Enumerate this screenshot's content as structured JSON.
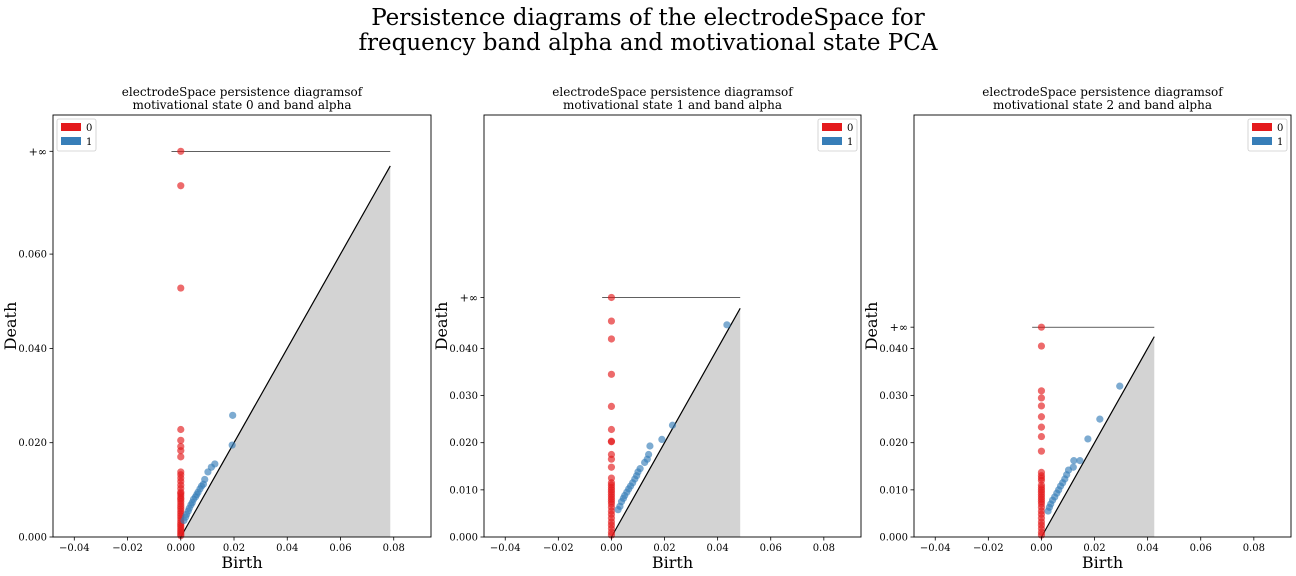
{
  "suptitle": {
    "line1": "Persistence diagrams of the electrodeSpace for",
    "line2": "frequency band alpha and motivational state PCA"
  },
  "colors": {
    "dim0": "#e41a1c",
    "dim1": "#377eb8",
    "diagonal_fill": "#d3d3d3"
  },
  "chart_data": [
    {
      "type": "scatter",
      "title": [
        "electrodeSpace persistence diagramsof",
        "motivational state 0 and band alpha"
      ],
      "xlabel": "Birth",
      "ylabel": "Death",
      "xlim": [
        -0.048,
        0.094
      ],
      "ylim": [
        0.0,
        0.0895
      ],
      "xticks": [
        -0.04,
        -0.02,
        0.0,
        0.02,
        0.04,
        0.06,
        0.08
      ],
      "xtick_labels": [
        "−0.04",
        "−0.02",
        "0.000",
        "0.02",
        "0.04",
        "0.06",
        "0.08"
      ],
      "yticks": [
        0.0,
        0.02,
        0.04,
        0.06
      ],
      "ytick_labels": [
        "0.000",
        "0.020",
        "0.040",
        "0.060"
      ],
      "inf_label": "+∞",
      "inf_value": 0.0818,
      "diagonal_max": 0.0787,
      "legend": {
        "position": "upper left",
        "entries": [
          "0",
          "1"
        ]
      },
      "series": [
        {
          "name": "0",
          "birth": [
            0,
            0,
            0,
            0,
            0,
            0,
            0,
            0,
            0,
            0,
            0,
            0,
            0,
            0,
            0,
            0,
            0,
            0,
            0,
            0,
            0,
            0,
            0,
            0,
            0,
            0,
            0,
            0,
            0,
            0,
            0,
            0,
            0,
            0,
            0,
            0
          ],
          "death": [
            0.0818,
            0.0745,
            0.0528,
            0.0228,
            0.0205,
            0.0192,
            0.0183,
            0.017,
            0.0138,
            0.0132,
            0.0125,
            0.0118,
            0.011,
            0.0103,
            0.0095,
            0.0092,
            0.0088,
            0.0083,
            0.008,
            0.0075,
            0.007,
            0.0065,
            0.006,
            0.0055,
            0.005,
            0.0045,
            0.004,
            0.0035,
            0.003,
            0.0026,
            0.0022,
            0.0018,
            0.0014,
            0.001,
            0.0006,
            0.0003
          ]
        },
        {
          "name": "1",
          "birth": [
            0.0195,
            0.0193,
            0.0128,
            0.0115,
            0.0102,
            0.009,
            0.0085,
            0.0078,
            0.0072,
            0.0065,
            0.006,
            0.0055,
            0.0048,
            0.0043,
            0.0038,
            0.0032,
            0.0028,
            0.0022,
            0.0018,
            0.0012
          ],
          "death": [
            0.0258,
            0.0195,
            0.0155,
            0.0148,
            0.0138,
            0.0122,
            0.0112,
            0.0108,
            0.0102,
            0.0095,
            0.009,
            0.0085,
            0.008,
            0.0073,
            0.0068,
            0.0061,
            0.0055,
            0.0048,
            0.0042,
            0.0035
          ]
        }
      ]
    },
    {
      "type": "scatter",
      "title": [
        "electrodeSpace persistence diagramsof",
        "motivational state 1 and band alpha"
      ],
      "xlabel": "Birth",
      "ylabel": "Death",
      "xlim": [
        -0.048,
        0.094
      ],
      "ylim": [
        0.0,
        0.0895
      ],
      "xticks": [
        -0.04,
        -0.02,
        0.0,
        0.02,
        0.04,
        0.06,
        0.08
      ],
      "xtick_labels": [
        "−0.04",
        "−0.02",
        "0.00",
        "0.02",
        "0.04",
        "0.06",
        "0.08"
      ],
      "yticks": [
        0.0,
        0.01,
        0.02,
        0.03,
        0.04
      ],
      "ytick_labels": [
        "0.000",
        "0.010",
        "0.020",
        "0.030",
        "0.040"
      ],
      "inf_label": "+∞",
      "inf_value": 0.0508,
      "diagonal_max": 0.0485,
      "legend": {
        "position": "upper right",
        "entries": [
          "0",
          "1"
        ]
      },
      "series": [
        {
          "name": "0",
          "birth": [
            0,
            0,
            0,
            0,
            0,
            0,
            0,
            0,
            0,
            0,
            0,
            0,
            0,
            0,
            0,
            0,
            0,
            0,
            0,
            0,
            0,
            0,
            0,
            0,
            0,
            0,
            0,
            0,
            0,
            0,
            0
          ],
          "death": [
            0.0508,
            0.0458,
            0.042,
            0.0345,
            0.0277,
            0.0228,
            0.0203,
            0.0202,
            0.0175,
            0.0165,
            0.0148,
            0.0125,
            0.0115,
            0.011,
            0.0105,
            0.01,
            0.0095,
            0.009,
            0.0085,
            0.008,
            0.0075,
            0.007,
            0.0063,
            0.0055,
            0.0048,
            0.004,
            0.0032,
            0.0025,
            0.0018,
            0.001,
            0.0004
          ]
        },
        {
          "name": "1",
          "birth": [
            0.0435,
            0.023,
            0.019,
            0.0145,
            0.014,
            0.0135,
            0.0125,
            0.0108,
            0.01,
            0.0095,
            0.0088,
            0.008,
            0.0072,
            0.0065,
            0.0058,
            0.005,
            0.0045,
            0.0038,
            0.0032,
            0.0025
          ],
          "death": [
            0.045,
            0.0237,
            0.0207,
            0.0193,
            0.0175,
            0.0165,
            0.0158,
            0.0145,
            0.0138,
            0.013,
            0.0123,
            0.0115,
            0.0108,
            0.0102,
            0.0095,
            0.0088,
            0.0082,
            0.0075,
            0.0065,
            0.0058
          ]
        }
      ]
    },
    {
      "type": "scatter",
      "title": [
        "electrodeSpace persistence diagramsof",
        "motivational state 2 and band alpha"
      ],
      "xlabel": "Birth",
      "ylabel": "Death",
      "xlim": [
        -0.048,
        0.094
      ],
      "ylim": [
        0.0,
        0.0895
      ],
      "xticks": [
        -0.04,
        -0.02,
        0.0,
        0.02,
        0.04,
        0.06,
        0.08
      ],
      "xtick_labels": [
        "−0.04",
        "−0.02",
        "0.00",
        "0.02",
        "0.04",
        "0.06",
        "0.08"
      ],
      "yticks": [
        0.0,
        0.01,
        0.02,
        0.03,
        0.04
      ],
      "ytick_labels": [
        "0.000",
        "0.010",
        "0.020",
        "0.030",
        "0.040"
      ],
      "inf_label": "+∞",
      "inf_value": 0.0445,
      "diagonal_max": 0.0425,
      "legend": {
        "position": "upper right",
        "entries": [
          "0",
          "1"
        ]
      },
      "series": [
        {
          "name": "0",
          "birth": [
            0,
            0,
            0,
            0,
            0,
            0,
            0,
            0,
            0,
            0,
            0,
            0,
            0,
            0,
            0,
            0,
            0,
            0,
            0,
            0,
            0,
            0,
            0,
            0,
            0,
            0,
            0,
            0,
            0,
            0,
            0
          ],
          "death": [
            0.0445,
            0.0405,
            0.031,
            0.0295,
            0.0278,
            0.0255,
            0.0233,
            0.0213,
            0.0182,
            0.0137,
            0.013,
            0.0125,
            0.012,
            0.011,
            0.0105,
            0.01,
            0.0095,
            0.009,
            0.0085,
            0.008,
            0.0075,
            0.007,
            0.0063,
            0.0055,
            0.0048,
            0.004,
            0.0032,
            0.0025,
            0.0018,
            0.001,
            0.0004
          ]
        },
        {
          "name": "1",
          "birth": [
            0.0295,
            0.022,
            0.0175,
            0.0145,
            0.0122,
            0.012,
            0.0102,
            0.0095,
            0.0088,
            0.008,
            0.0072,
            0.0065,
            0.0058,
            0.005,
            0.0042,
            0.0035,
            0.003,
            0.0025
          ],
          "death": [
            0.032,
            0.025,
            0.0208,
            0.0162,
            0.0162,
            0.0148,
            0.0142,
            0.0132,
            0.0123,
            0.0115,
            0.0108,
            0.01,
            0.0093,
            0.0085,
            0.0078,
            0.007,
            0.0063,
            0.0055
          ]
        }
      ]
    }
  ]
}
